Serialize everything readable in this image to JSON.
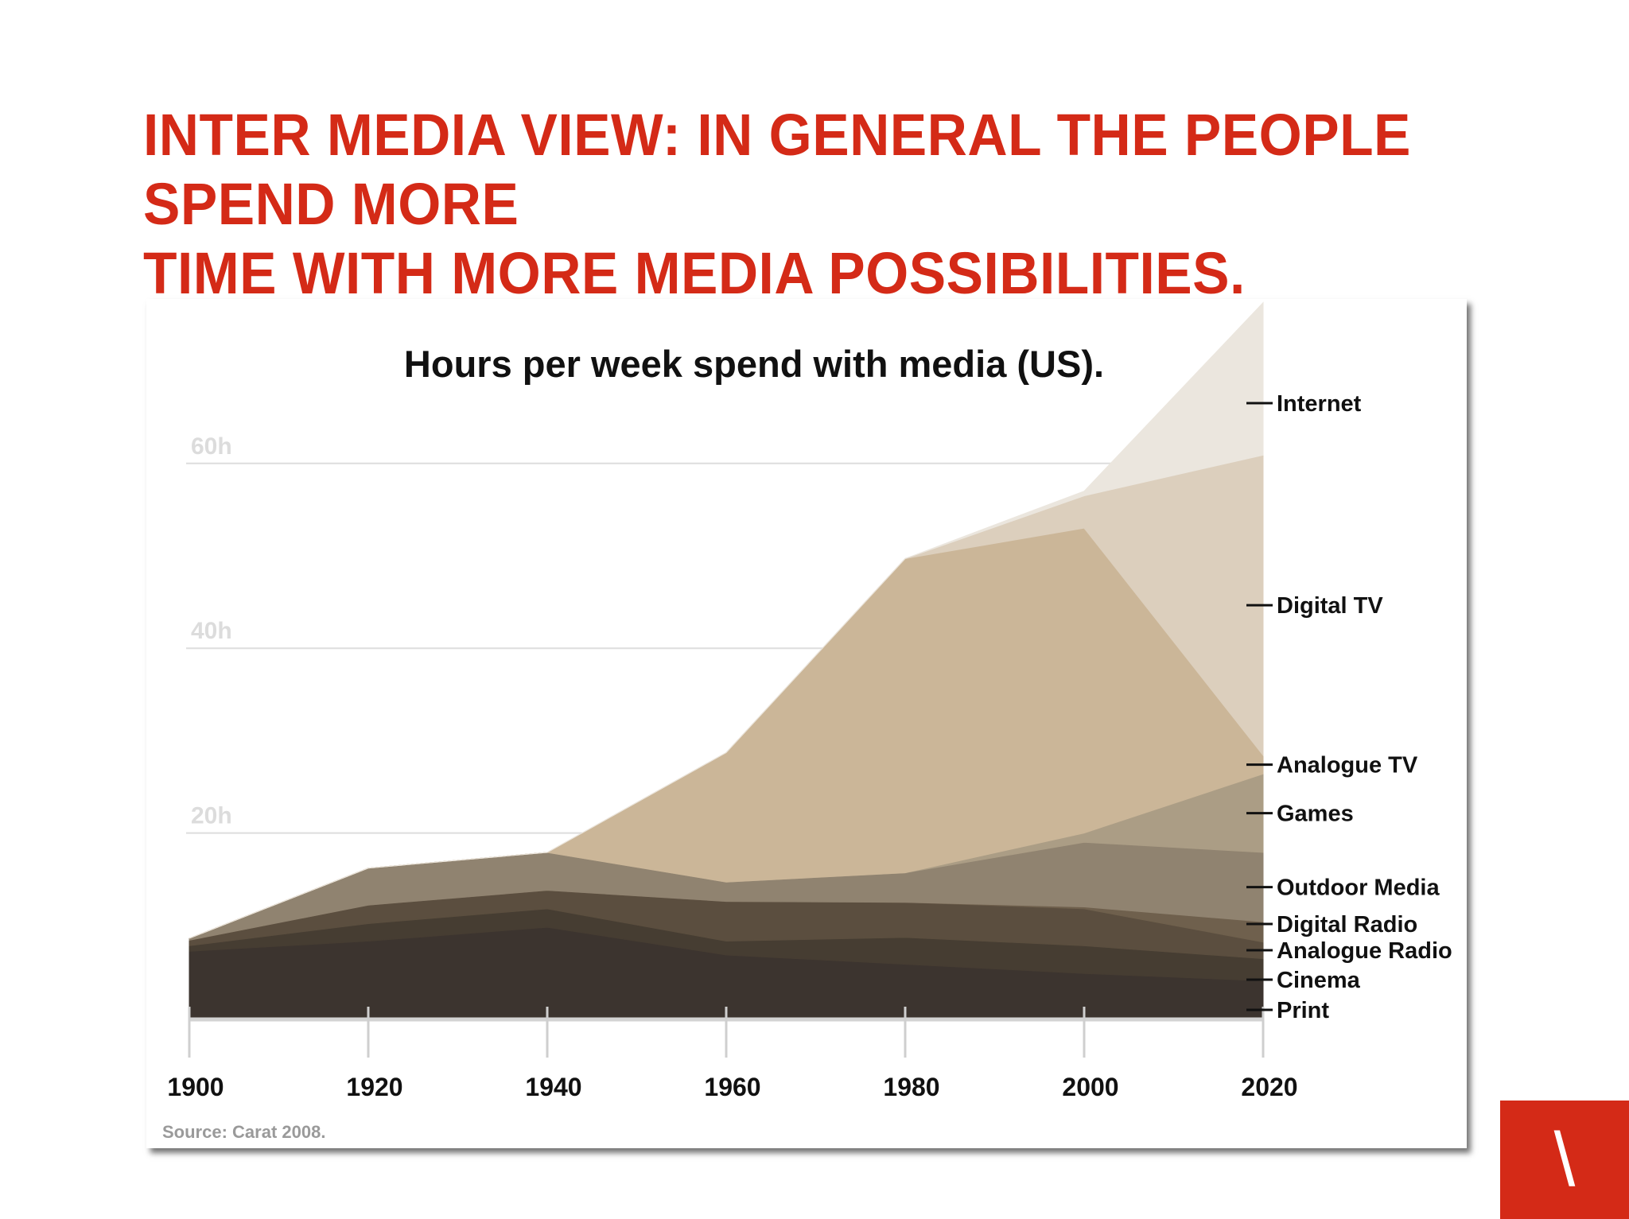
{
  "slide": {
    "title_line1": "INTER MEDIA VIEW: IN GENERAL THE PEOPLE SPEND MORE",
    "title_line2": "TIME WITH MORE MEDIA POSSIBILITIES.",
    "logo_glyph": "\\"
  },
  "colors": {
    "title": "#d42a17",
    "logo_bg": "#d42a17",
    "gridline": "#dddddd",
    "y_tick_label": "#dcdcdc",
    "source_text": "#9a9a9a"
  },
  "chart_data": {
    "type": "area",
    "stacked": true,
    "title": "Hours per week spend with media (US).",
    "source": "Source: Carat 2008.",
    "x": [
      1900,
      1920,
      1940,
      1960,
      1980,
      2000,
      2020
    ],
    "x_tick_labels": [
      "1900",
      "1920",
      "1940",
      "1960",
      "1980",
      "2000",
      "2020"
    ],
    "y_ticks": [
      20,
      40,
      60
    ],
    "y_tick_labels": [
      "20h",
      "40h",
      "60h"
    ],
    "ylim": [
      0,
      77
    ],
    "grid": true,
    "legend_position": "right",
    "series": [
      {
        "name": "Print",
        "color": "#3c342f",
        "values": [
          7.2,
          8.3,
          9.8,
          6.8,
          5.8,
          4.8,
          4.0
        ]
      },
      {
        "name": "Cinema",
        "color": "#463d32",
        "values": [
          0.6,
          1.9,
          2.0,
          1.5,
          2.9,
          3.0,
          2.4
        ]
      },
      {
        "name": "Analogue Radio",
        "color": "#5b4e3f",
        "values": [
          0.6,
          2.0,
          2.0,
          4.3,
          3.8,
          4.0,
          1.8
        ]
      },
      {
        "name": "Digital Radio",
        "color": "#6f604d",
        "values": [
          0.0,
          0.0,
          0.0,
          0.0,
          0.0,
          0.2,
          2.2
        ]
      },
      {
        "name": "Outdoor Media",
        "color": "#908370",
        "values": [
          0.2,
          4.0,
          4.1,
          2.1,
          3.2,
          7.0,
          7.5
        ]
      },
      {
        "name": "Games",
        "color": "#ab9d85",
        "values": [
          0.0,
          0.0,
          0.0,
          0.0,
          0.0,
          1.0,
          8.5
        ]
      },
      {
        "name": "Analogue TV",
        "color": "#cbb698",
        "values": [
          0.0,
          0.0,
          0.0,
          14.0,
          34.0,
          33.0,
          2.0
        ]
      },
      {
        "name": "Digital TV",
        "color": "#dccfbd",
        "values": [
          0.0,
          0.0,
          0.0,
          0.0,
          0.0,
          3.5,
          32.5
        ]
      },
      {
        "name": "Internet",
        "color": "#ebe6de",
        "values": [
          0.0,
          0.0,
          0.0,
          0.0,
          0.0,
          0.5,
          16.5
        ]
      }
    ],
    "legend_order": [
      "Internet",
      "Digital TV",
      "Analogue TV",
      "Games",
      "Outdoor Media",
      "Digital Radio",
      "Analogue Radio",
      "Cinema",
      "Print"
    ]
  }
}
